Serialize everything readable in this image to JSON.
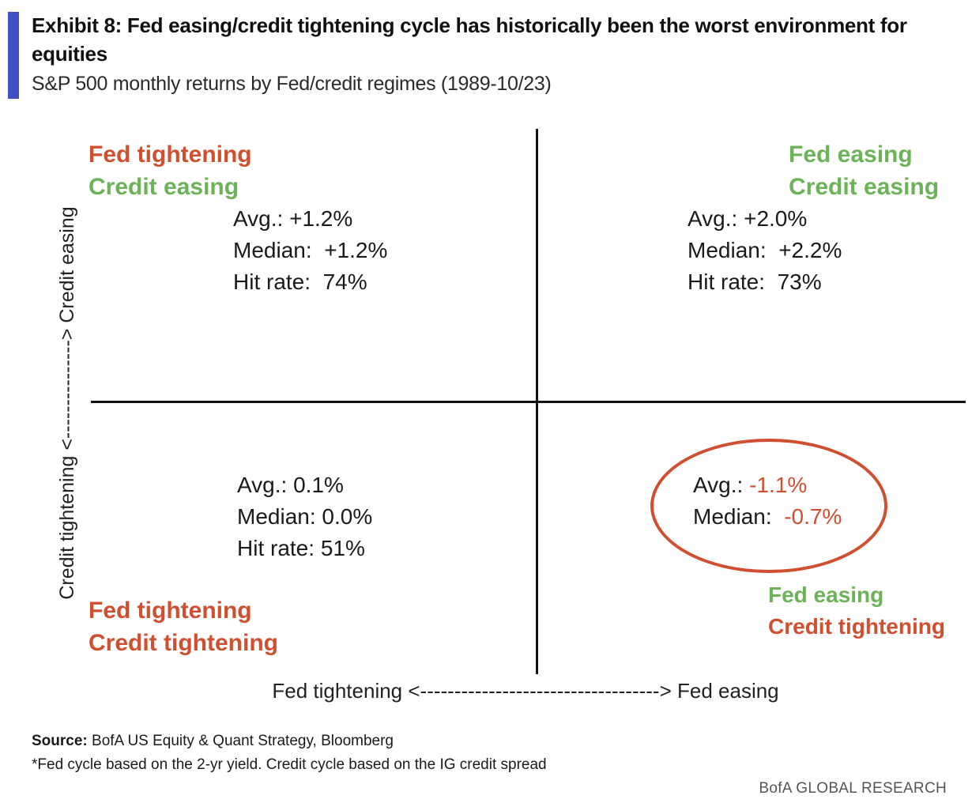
{
  "exhibit": {
    "title": "Exhibit 8: Fed easing/credit tightening cycle has historically been the worst environment for equities",
    "subtitle": "S&P 500 monthly returns by Fed/credit regimes (1989-10/23)",
    "accent_color": "#3f4fc4"
  },
  "axes": {
    "y_label": "Credit tightening <---------------> Credit easing",
    "x_label": "Fed tightening <-----------------------------------> Fed easing"
  },
  "colors": {
    "tightening": "#d04f2f",
    "easing": "#6cb256",
    "negative_value": "#d04f2f"
  },
  "quadrants": {
    "top_left": {
      "fed": "Fed tightening",
      "credit": "Credit  easing",
      "avg_label": "Avg.:",
      "avg": "+1.2%",
      "median_label": "Median:",
      "median": "+1.2%",
      "hit_label": "Hit rate:",
      "hit": "74%"
    },
    "top_right": {
      "fed": "Fed easing",
      "credit": "Credit  easing",
      "avg_label": "Avg.:",
      "avg": "+2.0%",
      "median_label": "Median:",
      "median": "+2.2%",
      "hit_label": "Hit rate:",
      "hit": "73%"
    },
    "bottom_left": {
      "fed": "Fed tightening",
      "credit": "Credit tightening",
      "avg_label": "Avg.:",
      "avg": "0.1%",
      "median_label": "Median:",
      "median": "0.0%",
      "hit_label": "Hit rate:",
      "hit": "51%"
    },
    "bottom_right": {
      "fed": "Fed easing",
      "credit": "Credit tightening",
      "avg_label": "Avg.:",
      "avg": "-1.1%",
      "median_label": "Median:",
      "median": "-0.7%"
    }
  },
  "footer": {
    "source_label": "Source:",
    "source_text": "BofA US Equity & Quant Strategy, Bloomberg",
    "footnote": "*Fed cycle based on the 2-yr yield. Credit cycle based on the IG credit spread",
    "brand": "BofA GLOBAL RESEARCH"
  }
}
